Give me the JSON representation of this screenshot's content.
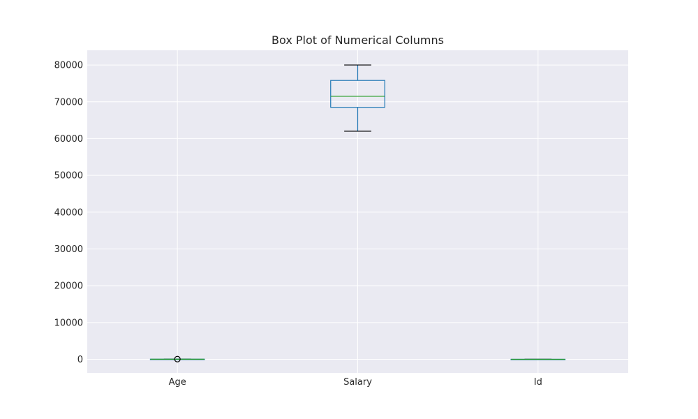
{
  "chart_data": {
    "type": "box",
    "title": "Box Plot of Numerical Columns",
    "xlabel": "",
    "ylabel": "",
    "categories": [
      "Age",
      "Salary",
      "Id"
    ],
    "ylim": [
      -3700,
      84000
    ],
    "yticks": [
      0,
      10000,
      20000,
      30000,
      40000,
      50000,
      60000,
      70000,
      80000
    ],
    "grid": true,
    "boxes": [
      {
        "label": "Age",
        "whisker_low": 25,
        "q1": 28,
        "median": 30,
        "q3": 33,
        "whisker_high": 40,
        "outliers": [
          45
        ]
      },
      {
        "label": "Salary",
        "whisker_low": 62000,
        "q1": 68500,
        "median": 71500,
        "q3": 75800,
        "whisker_high": 80000,
        "outliers": []
      },
      {
        "label": "Id",
        "whisker_low": 1,
        "q1": 3,
        "median": 5,
        "q3": 8,
        "whisker_high": 10,
        "outliers": []
      }
    ],
    "colors": {
      "background": "#eaeaf2",
      "grid": "#ffffff",
      "box": "#1f77b4",
      "median": "#2ca02c",
      "whisker_cap": "#000000",
      "outlier": "#000000"
    }
  }
}
